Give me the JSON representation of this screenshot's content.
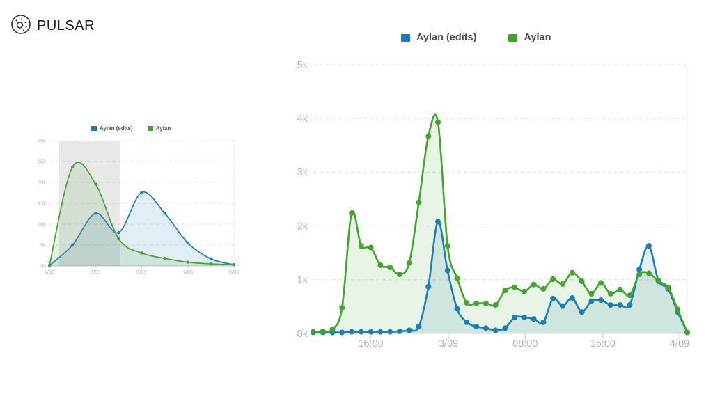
{
  "brand": "PULSAR",
  "colors": {
    "blue": "#1b7eb8",
    "green": "#42a52e",
    "axis_text": "#b3b6b8",
    "legend_text": "#4a4a4a",
    "grid": "#e3e3e3",
    "baseline": "#cccccc",
    "plot_border": "#ededed",
    "brush": "rgba(125,125,125,0.18)"
  },
  "legend": {
    "edits": "Aylan (edits)",
    "aylan": "Aylan"
  },
  "chart_data": [
    {
      "id": "overview",
      "type": "area",
      "x": [
        1,
        2,
        3,
        4,
        5,
        6,
        7,
        8,
        9
      ],
      "x_tick_positions": [
        1,
        3,
        5,
        7,
        9
      ],
      "x_tick_labels": [
        "1/09",
        "3/09",
        "5/09",
        "7/09",
        "9/09"
      ],
      "y_tick_labels": [
        "30k",
        "25k",
        "20k",
        "15k",
        "10k",
        "5k",
        "0k"
      ],
      "ylim": [
        0,
        30000
      ],
      "series": [
        {
          "name": "Aylan (edits)",
          "color": "#1b7eb8",
          "values": [
            100,
            5000,
            12600,
            8000,
            17600,
            12600,
            5500,
            1700,
            300
          ]
        },
        {
          "name": "Aylan",
          "color": "#42a52e",
          "values": [
            200,
            23700,
            19600,
            6500,
            3100,
            1800,
            900,
            500,
            300
          ]
        }
      ],
      "brush": {
        "from_x": 1.42,
        "to_x": 4.08
      }
    },
    {
      "id": "detail",
      "type": "area",
      "x": [
        0,
        1,
        2,
        3,
        4,
        5,
        6,
        7,
        8,
        9,
        10,
        11,
        12,
        13,
        14,
        15,
        16,
        17,
        18,
        19,
        20,
        21,
        22,
        23,
        24,
        25,
        26,
        27,
        28,
        29,
        30,
        31,
        32,
        33,
        34,
        35,
        36,
        37,
        38,
        39
      ],
      "x_tick_positions": [
        6,
        14.1,
        22.1,
        30.2,
        38.2
      ],
      "x_tick_labels": [
        "16:00",
        "3/09",
        "08:00",
        "16:00",
        "4/09"
      ],
      "y_tick_labels": [
        "5k",
        "4k",
        "3k",
        "2k",
        "1k",
        "0k"
      ],
      "ylim": [
        0,
        5000
      ],
      "series": [
        {
          "name": "Aylan (edits)",
          "color": "#1b7eb8",
          "values": [
            20,
            20,
            20,
            20,
            30,
            30,
            30,
            30,
            30,
            40,
            60,
            130,
            870,
            2080,
            1170,
            460,
            210,
            130,
            100,
            60,
            100,
            300,
            300,
            270,
            210,
            650,
            510,
            660,
            400,
            600,
            620,
            530,
            530,
            530,
            1190,
            1630,
            980,
            830,
            400,
            20
          ]
        },
        {
          "name": "Aylan",
          "color": "#42a52e",
          "values": [
            30,
            40,
            80,
            480,
            2240,
            1630,
            1600,
            1270,
            1230,
            1100,
            1310,
            2440,
            3670,
            3930,
            1630,
            1030,
            570,
            560,
            560,
            530,
            800,
            860,
            780,
            910,
            830,
            1010,
            920,
            1130,
            970,
            740,
            940,
            740,
            820,
            710,
            1100,
            1120,
            970,
            860,
            450,
            20
          ]
        }
      ]
    }
  ]
}
